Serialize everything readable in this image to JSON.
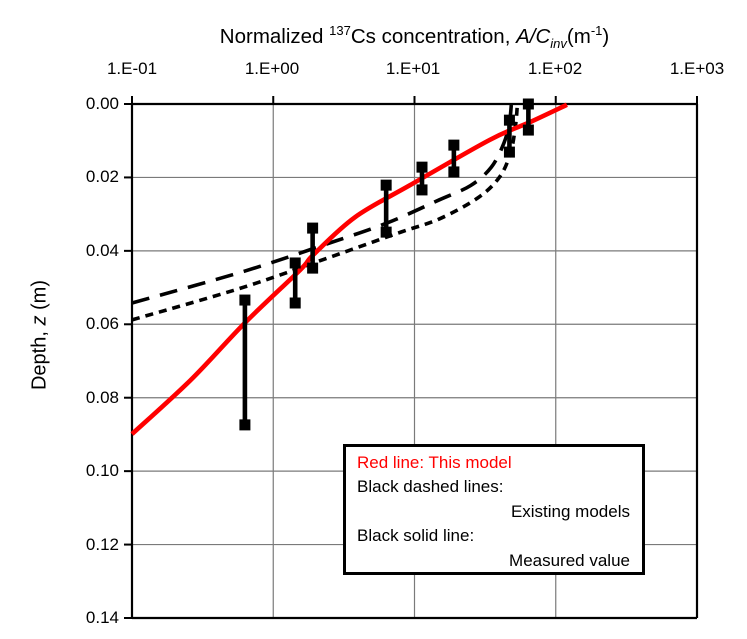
{
  "colors": {
    "red": "#ff0000",
    "black": "#000000",
    "grid": "#7a7a7a",
    "background": "#ffffff"
  },
  "title": {
    "t1": "Normalized ",
    "sup1": "137",
    "t2": "Cs concentration, ",
    "var1": "A/C",
    "var_sub": "inv",
    "t3": "(m",
    "sup2": "-1",
    "t4": ")"
  },
  "y_axis_label": {
    "t1": "Depth, ",
    "var1": "z",
    "t2": " (m)"
  },
  "legend": {
    "line1": "Red line: This model",
    "line2": "Black dashed lines:",
    "line3": "Existing models",
    "line4": "Black solid line:",
    "line5": "Measured value"
  },
  "chart_data": {
    "type": "line",
    "title": "Normalized 137Cs concentration, A/Cinv (m-1)",
    "x_axis": {
      "label": "Normalized 137Cs concentration, A/Cinv (m-1)",
      "position": "top",
      "scale": "log",
      "range": [
        0.1,
        1000
      ],
      "tick_labels": [
        "1.E-01",
        "1.E+00",
        "1.E+01",
        "1.E+02",
        "1.E+03"
      ]
    },
    "y_axis": {
      "label": "Depth, z (m)",
      "range": [
        0,
        0.14
      ],
      "inverted": true,
      "tick_step": 0.02,
      "tick_labels": [
        "0.00",
        "0.02",
        "0.04",
        "0.06",
        "0.08",
        "0.10",
        "0.12",
        "0.14"
      ]
    },
    "grid": true,
    "series": [
      {
        "name": "Existing model (long dash)",
        "type": "line",
        "color": "#000000",
        "dash": "long",
        "width": 3.6,
        "points": [
          [
            0.1,
            0.0542
          ],
          [
            0.63,
            0.0455
          ],
          [
            2.4,
            0.0381
          ],
          [
            6.4,
            0.0324
          ],
          [
            15,
            0.0261
          ],
          [
            25,
            0.0222
          ],
          [
            35,
            0.0172
          ],
          [
            43,
            0.0106
          ],
          [
            47,
            0.005
          ],
          [
            48.5,
            0.0
          ]
        ]
      },
      {
        "name": "Existing model (short dash)",
        "type": "line",
        "color": "#000000",
        "dash": "short",
        "width": 3.6,
        "points": [
          [
            0.1,
            0.0588
          ],
          [
            0.63,
            0.0498
          ],
          [
            2.8,
            0.0411
          ],
          [
            8,
            0.0349
          ],
          [
            15,
            0.0313
          ],
          [
            28,
            0.0256
          ],
          [
            40,
            0.0199
          ],
          [
            48,
            0.0131
          ],
          [
            52,
            0.0056
          ],
          [
            53.5,
            0.0
          ]
        ]
      },
      {
        "name": "This model",
        "type": "line",
        "color": "#ff0000",
        "dash": "solid",
        "width": 4.6,
        "points": [
          [
            0.1,
            0.0899
          ],
          [
            0.26,
            0.0752
          ],
          [
            0.63,
            0.0596
          ],
          [
            1.55,
            0.0452
          ],
          [
            1.92,
            0.0411
          ],
          [
            3.8,
            0.0308
          ],
          [
            9.3,
            0.0221
          ],
          [
            34,
            0.0098
          ],
          [
            66,
            0.0049
          ],
          [
            120,
            0.0002
          ]
        ]
      },
      {
        "name": "Measured value",
        "type": "vertical-segments",
        "color": "#000000",
        "width": 4.6,
        "cap_size": 11,
        "segments": [
          {
            "conc": 0.63,
            "depth_top": 0.0534,
            "depth_bottom": 0.0874
          },
          {
            "conc": 1.43,
            "depth_top": 0.0433,
            "depth_bottom": 0.0542
          },
          {
            "conc": 1.9,
            "depth_top": 0.0338,
            "depth_bottom": 0.0447
          },
          {
            "conc": 6.3,
            "depth_top": 0.0221,
            "depth_bottom": 0.0349
          },
          {
            "conc": 11.3,
            "depth_top": 0.0172,
            "depth_bottom": 0.0234
          },
          {
            "conc": 19.0,
            "depth_top": 0.0112,
            "depth_bottom": 0.0185
          },
          {
            "conc": 47.0,
            "depth_top": 0.0044,
            "depth_bottom": 0.0131
          },
          {
            "conc": 64.0,
            "depth_top": 0.0,
            "depth_bottom": 0.0071
          }
        ]
      }
    ]
  }
}
